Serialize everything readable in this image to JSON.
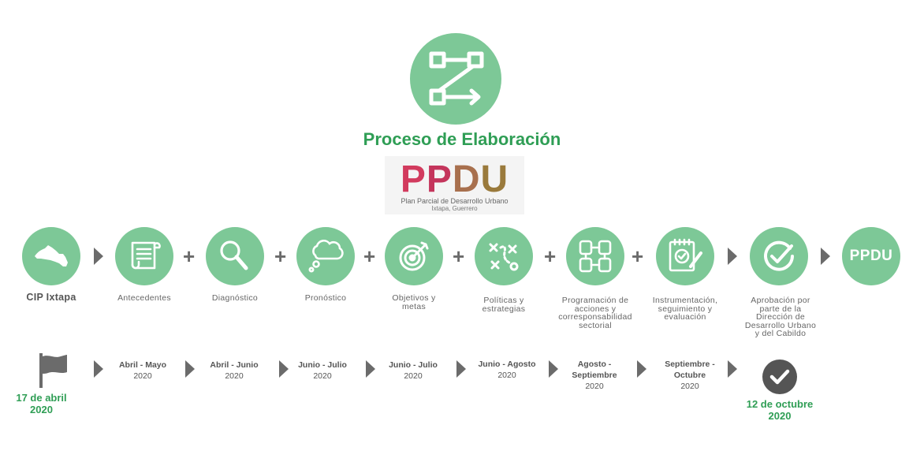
{
  "title": "Proceso de Elaboración",
  "logo": {
    "letters": [
      "P",
      "P",
      "D",
      "U"
    ],
    "subtitle": "Plan Parcial de Desarrollo Urbano",
    "location": "Ixtapa, Guerrero"
  },
  "steps": [
    {
      "label": "CIP Ixtapa"
    },
    {
      "label": "Antecedentes"
    },
    {
      "label": "Diagnóstico"
    },
    {
      "label": "Pronóstico"
    },
    {
      "label_lines": [
        "Objetivos y",
        "metas"
      ]
    },
    {
      "label_lines": [
        "Políticas y",
        "estrategias"
      ]
    },
    {
      "label_lines": [
        "Programación de",
        "acciones y",
        "corresponsabilidad",
        "sectorial"
      ]
    },
    {
      "label_lines": [
        "Instrumentación,",
        "seguimiento y",
        "evaluación"
      ]
    },
    {
      "label_lines": [
        "Aprobación por",
        "parte de la",
        "Dirección de",
        "Desarrollo Urbano",
        "y del Cabildo"
      ]
    },
    {
      "badge": "PPDU"
    }
  ],
  "timeline": {
    "start": [
      "17 de abril",
      "2020"
    ],
    "periods": [
      {
        "period": "Abril - Mayo",
        "year": "2020"
      },
      {
        "period": "Abril - Junio",
        "year": "2020"
      },
      {
        "period": "Junio - Julio",
        "year": "2020"
      },
      {
        "period": "Junio - Julio",
        "year": "2020"
      },
      {
        "period": "Junio - Agosto",
        "year": "2020"
      },
      {
        "period_lines": [
          "Agosto -",
          "Septiembre"
        ],
        "year": "2020"
      },
      {
        "period_lines": [
          "Septiembre -",
          "Octubre"
        ],
        "year": "2020"
      }
    ],
    "end": [
      "12 de octubre",
      "2020"
    ]
  },
  "colors": {
    "circle": "#7dc897",
    "title_green": "#2f9e55",
    "connector": "#6b6b6b",
    "logo_letters": [
      "#d23b5e",
      "#c4355c",
      "#a8704e",
      "#9a7a3c"
    ]
  }
}
